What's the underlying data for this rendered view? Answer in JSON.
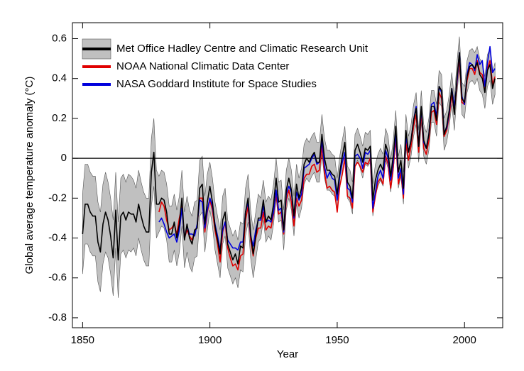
{
  "chart_data": {
    "type": "line",
    "xlabel": "Year",
    "ylabel": "Global average temperature anomaly (°C)",
    "xlim": [
      1846,
      2015
    ],
    "ylim": [
      -0.85,
      0.68
    ],
    "xticks": [
      1850,
      1900,
      1950,
      2000
    ],
    "yticks": [
      -0.8,
      -0.6,
      -0.4,
      -0.2,
      0,
      0.2,
      0.4,
      0.6
    ],
    "reference_line": 0,
    "legend": "upper left",
    "band_color": "#c0c0c0",
    "x": [
      1850,
      1851,
      1852,
      1853,
      1854,
      1855,
      1856,
      1857,
      1858,
      1859,
      1860,
      1861,
      1862,
      1863,
      1864,
      1865,
      1866,
      1867,
      1868,
      1869,
      1870,
      1871,
      1872,
      1873,
      1874,
      1875,
      1876,
      1877,
      1878,
      1879,
      1880,
      1881,
      1882,
      1883,
      1884,
      1885,
      1886,
      1887,
      1888,
      1889,
      1890,
      1891,
      1892,
      1893,
      1894,
      1895,
      1896,
      1897,
      1898,
      1899,
      1900,
      1901,
      1902,
      1903,
      1904,
      1905,
      1906,
      1907,
      1908,
      1909,
      1910,
      1911,
      1912,
      1913,
      1914,
      1915,
      1916,
      1917,
      1918,
      1919,
      1920,
      1921,
      1922,
      1923,
      1924,
      1925,
      1926,
      1927,
      1928,
      1929,
      1930,
      1931,
      1932,
      1933,
      1934,
      1935,
      1936,
      1937,
      1938,
      1939,
      1940,
      1941,
      1942,
      1943,
      1944,
      1945,
      1946,
      1947,
      1948,
      1949,
      1950,
      1951,
      1952,
      1953,
      1954,
      1955,
      1956,
      1957,
      1958,
      1959,
      1960,
      1961,
      1962,
      1963,
      1964,
      1965,
      1966,
      1967,
      1968,
      1969,
      1970,
      1971,
      1972,
      1973,
      1974,
      1975,
      1976,
      1977,
      1978,
      1979,
      1980,
      1981,
      1982,
      1983,
      1984,
      1985,
      1986,
      1987,
      1988,
      1989,
      1990,
      1991,
      1992,
      1993,
      1994,
      1995,
      1996,
      1997,
      1998,
      1999,
      2000,
      2001,
      2002,
      2003,
      2004,
      2005,
      2006,
      2007,
      2008,
      2009,
      2010,
      2011,
      2012
    ],
    "series": [
      {
        "name": "Met Office Hadley Centre and Climatic Research Unit",
        "color": "#000000",
        "values": [
          -0.38,
          -0.23,
          -0.23,
          -0.27,
          -0.29,
          -0.29,
          -0.42,
          -0.47,
          -0.33,
          -0.27,
          -0.31,
          -0.39,
          -0.5,
          -0.26,
          -0.51,
          -0.29,
          -0.27,
          -0.31,
          -0.27,
          -0.28,
          -0.28,
          -0.32,
          -0.23,
          -0.29,
          -0.34,
          -0.37,
          -0.37,
          -0.07,
          0.03,
          -0.23,
          -0.23,
          -0.2,
          -0.21,
          -0.27,
          -0.38,
          -0.38,
          -0.32,
          -0.4,
          -0.33,
          -0.2,
          -0.41,
          -0.33,
          -0.4,
          -0.43,
          -0.36,
          -0.35,
          -0.15,
          -0.13,
          -0.33,
          -0.22,
          -0.14,
          -0.22,
          -0.34,
          -0.41,
          -0.48,
          -0.31,
          -0.27,
          -0.43,
          -0.47,
          -0.51,
          -0.48,
          -0.53,
          -0.44,
          -0.45,
          -0.27,
          -0.2,
          -0.38,
          -0.48,
          -0.39,
          -0.3,
          -0.3,
          -0.21,
          -0.32,
          -0.29,
          -0.31,
          -0.23,
          -0.1,
          -0.22,
          -0.21,
          -0.36,
          -0.16,
          -0.1,
          -0.16,
          -0.29,
          -0.13,
          -0.2,
          -0.15,
          -0.03,
          0.0,
          -0.02,
          0.01,
          0.03,
          -0.02,
          -0.02,
          0.12,
          0.0,
          -0.06,
          -0.06,
          -0.08,
          -0.09,
          -0.18,
          -0.07,
          0.01,
          0.08,
          -0.12,
          -0.14,
          -0.2,
          0.04,
          0.07,
          0.03,
          -0.02,
          0.05,
          0.04,
          0.06,
          -0.21,
          -0.11,
          -0.06,
          -0.03,
          -0.06,
          0.07,
          0.03,
          -0.09,
          0.01,
          0.16,
          -0.07,
          -0.01,
          -0.15,
          0.14,
          0.03,
          0.09,
          0.19,
          0.25,
          0.06,
          0.26,
          0.09,
          0.05,
          0.12,
          0.26,
          0.26,
          0.19,
          0.36,
          0.34,
          0.12,
          0.16,
          0.24,
          0.35,
          0.22,
          0.4,
          0.53,
          0.3,
          0.28,
          0.41,
          0.46,
          0.47,
          0.45,
          0.48,
          0.42,
          0.4,
          0.33,
          0.44,
          0.47,
          0.35,
          0.4
        ],
        "errors": [
          0.2,
          0.2,
          0.2,
          0.2,
          0.2,
          0.2,
          0.2,
          0.2,
          0.2,
          0.2,
          0.19,
          0.19,
          0.19,
          0.19,
          0.19,
          0.19,
          0.19,
          0.19,
          0.19,
          0.19,
          0.17,
          0.17,
          0.17,
          0.17,
          0.17,
          0.17,
          0.17,
          0.17,
          0.17,
          0.17,
          0.14,
          0.14,
          0.14,
          0.14,
          0.14,
          0.14,
          0.14,
          0.14,
          0.14,
          0.14,
          0.14,
          0.14,
          0.14,
          0.14,
          0.14,
          0.14,
          0.14,
          0.14,
          0.14,
          0.14,
          0.12,
          0.12,
          0.12,
          0.12,
          0.12,
          0.12,
          0.12,
          0.12,
          0.12,
          0.12,
          0.12,
          0.12,
          0.12,
          0.12,
          0.12,
          0.12,
          0.12,
          0.12,
          0.12,
          0.12,
          0.1,
          0.1,
          0.1,
          0.1,
          0.1,
          0.1,
          0.1,
          0.1,
          0.1,
          0.1,
          0.1,
          0.1,
          0.1,
          0.1,
          0.1,
          0.1,
          0.1,
          0.1,
          0.1,
          0.1,
          0.1,
          0.1,
          0.1,
          0.1,
          0.1,
          0.1,
          0.1,
          0.1,
          0.1,
          0.1,
          0.08,
          0.08,
          0.08,
          0.08,
          0.08,
          0.08,
          0.08,
          0.08,
          0.08,
          0.08,
          0.08,
          0.08,
          0.08,
          0.08,
          0.08,
          0.08,
          0.08,
          0.08,
          0.08,
          0.08,
          0.08,
          0.08,
          0.08,
          0.08,
          0.08,
          0.08,
          0.08,
          0.08,
          0.08,
          0.08,
          0.08,
          0.08,
          0.08,
          0.08,
          0.08,
          0.08,
          0.08,
          0.08,
          0.08,
          0.08,
          0.08,
          0.08,
          0.08,
          0.08,
          0.08,
          0.08,
          0.08,
          0.08,
          0.08,
          0.08,
          0.08,
          0.08,
          0.08,
          0.08,
          0.08,
          0.08,
          0.08,
          0.08,
          0.08,
          0.08,
          0.08,
          0.08,
          0.08
        ]
      },
      {
        "name": "NOAA National Climatic Data Center",
        "color": "#e00000",
        "values": [
          null,
          null,
          null,
          null,
          null,
          null,
          null,
          null,
          null,
          null,
          null,
          null,
          null,
          null,
          null,
          null,
          null,
          null,
          null,
          null,
          null,
          null,
          null,
          null,
          null,
          null,
          null,
          null,
          null,
          null,
          -0.27,
          -0.22,
          -0.24,
          -0.31,
          -0.36,
          -0.35,
          -0.33,
          -0.38,
          -0.3,
          -0.24,
          -0.4,
          -0.36,
          -0.39,
          -0.41,
          -0.37,
          -0.34,
          -0.2,
          -0.2,
          -0.37,
          -0.27,
          -0.21,
          -0.26,
          -0.36,
          -0.43,
          -0.52,
          -0.37,
          -0.32,
          -0.45,
          -0.5,
          -0.54,
          -0.53,
          -0.56,
          -0.49,
          -0.48,
          -0.31,
          -0.24,
          -0.41,
          -0.49,
          -0.4,
          -0.35,
          -0.35,
          -0.27,
          -0.36,
          -0.34,
          -0.35,
          -0.28,
          -0.18,
          -0.28,
          -0.27,
          -0.38,
          -0.21,
          -0.16,
          -0.22,
          -0.34,
          -0.2,
          -0.24,
          -0.21,
          -0.1,
          -0.08,
          -0.08,
          -0.04,
          -0.03,
          -0.07,
          -0.06,
          0.06,
          -0.07,
          -0.15,
          -0.14,
          -0.16,
          -0.17,
          -0.27,
          -0.14,
          -0.08,
          0.0,
          -0.19,
          -0.2,
          -0.25,
          -0.04,
          -0.02,
          -0.04,
          -0.07,
          -0.02,
          -0.03,
          0.0,
          -0.27,
          -0.19,
          -0.12,
          -0.1,
          -0.13,
          0.01,
          -0.03,
          -0.15,
          -0.05,
          0.1,
          -0.13,
          -0.07,
          -0.2,
          0.08,
          -0.01,
          0.06,
          0.16,
          0.22,
          0.03,
          0.23,
          0.05,
          0.02,
          0.09,
          0.23,
          0.24,
          0.17,
          0.33,
          0.3,
          0.11,
          0.14,
          0.21,
          0.32,
          0.23,
          0.37,
          0.5,
          0.28,
          0.27,
          0.39,
          0.45,
          0.45,
          0.42,
          0.49,
          0.43,
          0.42,
          0.35,
          0.45,
          0.49,
          0.37,
          0.41
        ]
      },
      {
        "name": "NASA Goddard Institute for Space Studies",
        "color": "#0000dd",
        "values": [
          null,
          null,
          null,
          null,
          null,
          null,
          null,
          null,
          null,
          null,
          null,
          null,
          null,
          null,
          null,
          null,
          null,
          null,
          null,
          null,
          null,
          null,
          null,
          null,
          null,
          null,
          null,
          null,
          null,
          null,
          -0.32,
          -0.3,
          -0.33,
          -0.37,
          -0.4,
          -0.39,
          -0.38,
          -0.42,
          -0.36,
          -0.25,
          -0.4,
          -0.34,
          -0.38,
          -0.38,
          -0.39,
          -0.33,
          -0.21,
          -0.22,
          -0.35,
          -0.26,
          -0.2,
          -0.24,
          -0.33,
          -0.39,
          -0.46,
          -0.36,
          -0.32,
          -0.41,
          -0.43,
          -0.45,
          -0.45,
          -0.46,
          -0.42,
          -0.42,
          -0.27,
          -0.22,
          -0.39,
          -0.44,
          -0.36,
          -0.31,
          -0.31,
          -0.24,
          -0.32,
          -0.31,
          -0.32,
          -0.27,
          -0.16,
          -0.26,
          -0.25,
          -0.37,
          -0.18,
          -0.14,
          -0.17,
          -0.3,
          -0.17,
          -0.21,
          -0.18,
          -0.05,
          -0.04,
          -0.03,
          0.0,
          0.02,
          -0.03,
          -0.02,
          0.09,
          -0.04,
          -0.1,
          -0.07,
          -0.1,
          -0.11,
          -0.21,
          -0.09,
          -0.02,
          0.03,
          -0.15,
          -0.16,
          -0.22,
          0.01,
          0.02,
          0.0,
          -0.05,
          0.03,
          0.02,
          0.04,
          -0.25,
          -0.17,
          -0.09,
          -0.06,
          -0.1,
          0.04,
          0.0,
          -0.11,
          -0.02,
          0.13,
          -0.1,
          -0.05,
          -0.18,
          0.11,
          0.03,
          0.09,
          0.19,
          0.26,
          0.06,
          0.25,
          0.08,
          0.05,
          0.12,
          0.27,
          0.28,
          0.21,
          0.36,
          0.33,
          0.13,
          0.15,
          0.23,
          0.35,
          0.26,
          0.38,
          0.53,
          0.31,
          0.27,
          0.42,
          0.48,
          0.47,
          0.44,
          0.52,
          0.47,
          0.49,
          0.36,
          0.48,
          0.56,
          0.43,
          0.45
        ]
      }
    ]
  }
}
